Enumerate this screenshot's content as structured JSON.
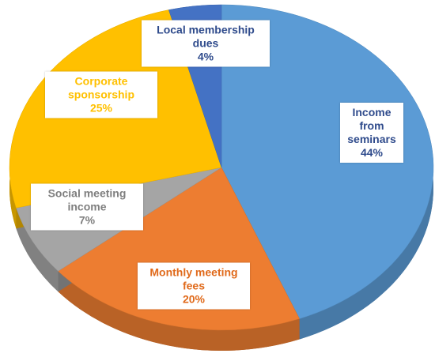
{
  "chart_data": {
    "type": "pie",
    "categories": [
      "Income from seminars",
      "Monthly meeting fees",
      "Social meeting income",
      "Corporate sponsorship",
      "Local membership dues"
    ],
    "values": [
      44,
      20,
      7,
      25,
      4
    ],
    "value_labels": [
      "44%",
      "20%",
      "7%",
      "25%",
      "4%"
    ],
    "colors": [
      "#5b9bd5",
      "#ed7d31",
      "#a5a5a5",
      "#ffc000",
      "#4472c4"
    ],
    "label_colors": [
      "#2f4b8c",
      "#e06a1b",
      "#7f7f7f",
      "#ffc000",
      "#2f4b8c"
    ]
  }
}
